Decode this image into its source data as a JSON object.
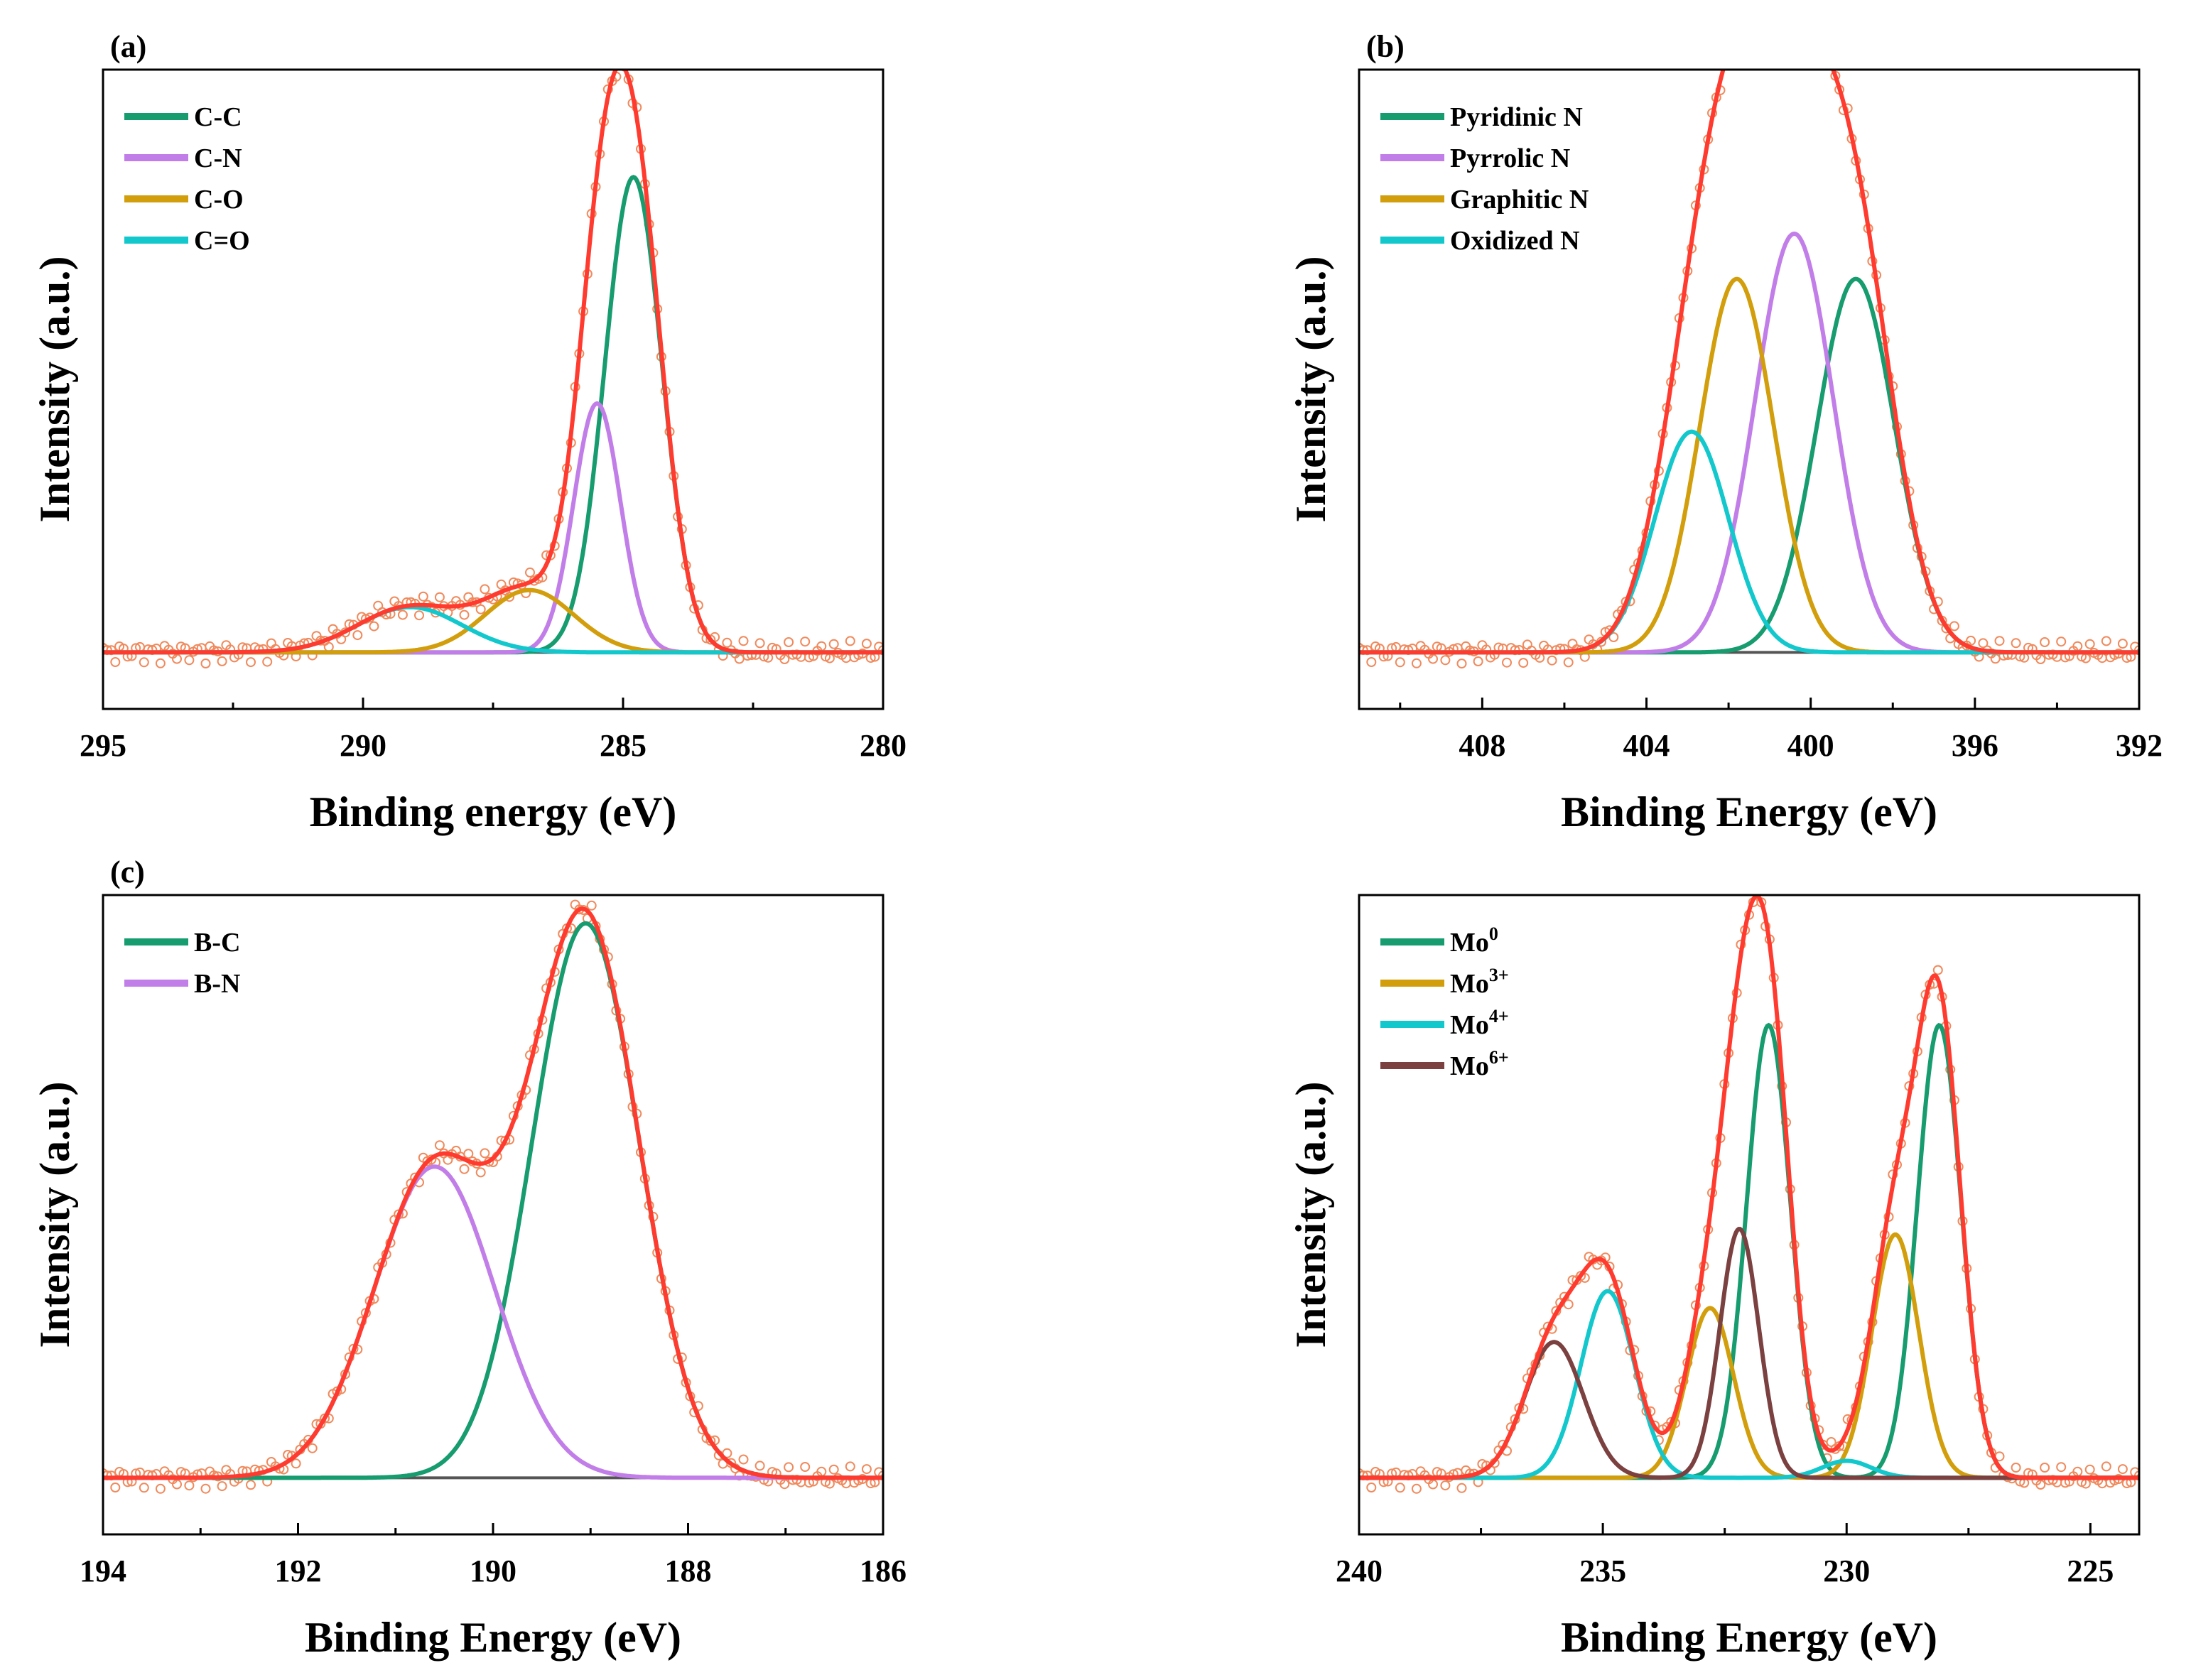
{
  "colors": {
    "data_marker": "#f08a5d",
    "envelope": "#ff3b2f",
    "green": "#169c6e",
    "violet": "#c27ee8",
    "gold": "#d29e0c",
    "cyan": "#13c8cc",
    "brown": "#7b4040",
    "baseline": "#555555"
  },
  "chart_data": [
    {
      "id": "a",
      "type": "line",
      "panel_label": "(a)",
      "xlabel": "Binding energy (eV)",
      "ylabel": "Intensity (a.u.)",
      "xlim": [
        295,
        280
      ],
      "xticks": [
        {
          "v": 295,
          "t": "295"
        },
        {
          "v": 290,
          "t": "290"
        },
        {
          "v": 285,
          "t": "285"
        },
        {
          "v": 280,
          "t": "280"
        }
      ],
      "minor_ticks": [
        292.5,
        287.5,
        282.5
      ],
      "ylim": [
        0,
        1.13
      ],
      "baseline": 0.1,
      "series": [
        {
          "name": "C-C",
          "color": "green",
          "center": 284.8,
          "height": 0.84,
          "width": 0.55
        },
        {
          "name": "C-N",
          "color": "violet",
          "center": 285.5,
          "height": 0.44,
          "width": 0.45
        },
        {
          "name": "C-O",
          "color": "gold",
          "center": 286.8,
          "height": 0.11,
          "width": 0.85
        },
        {
          "name": "C=O",
          "color": "cyan",
          "center": 289.1,
          "height": 0.08,
          "width": 1.0
        }
      ]
    },
    {
      "id": "b",
      "type": "line",
      "panel_label": "(b)",
      "xlabel": "Binding Energy (eV)",
      "ylabel": "Intensity (a.u.)",
      "xlim": [
        411,
        392
      ],
      "xticks": [
        {
          "v": 408,
          "t": "408"
        },
        {
          "v": 404,
          "t": "404"
        },
        {
          "v": 400,
          "t": "400"
        },
        {
          "v": 396,
          "t": "396"
        },
        {
          "v": 392,
          "t": "392"
        }
      ],
      "minor_ticks": [
        410,
        406,
        402,
        398,
        394
      ],
      "ylim": [
        0,
        1.13
      ],
      "baseline": 0.1,
      "series": [
        {
          "name": "Pyridinic N",
          "color": "green",
          "center": 398.9,
          "height": 0.66,
          "width": 0.95
        },
        {
          "name": "Pyrrolic N",
          "color": "violet",
          "center": 400.4,
          "height": 0.74,
          "width": 0.95
        },
        {
          "name": "Graphitic N",
          "color": "gold",
          "center": 401.8,
          "height": 0.66,
          "width": 0.9
        },
        {
          "name": "Oxidized N",
          "color": "cyan",
          "center": 402.9,
          "height": 0.39,
          "width": 0.9
        }
      ]
    },
    {
      "id": "c",
      "type": "line",
      "panel_label": "(c)",
      "xlabel": "Binding Energy (eV)",
      "ylabel": "Intensity (a.u.)",
      "xlim": [
        194,
        186
      ],
      "xticks": [
        {
          "v": 194,
          "t": "194"
        },
        {
          "v": 192,
          "t": "192"
        },
        {
          "v": 190,
          "t": "190"
        },
        {
          "v": 188,
          "t": "188"
        },
        {
          "v": 186,
          "t": "186"
        }
      ],
      "minor_ticks": [
        193,
        191,
        189,
        187
      ],
      "ylim": [
        0,
        1.13
      ],
      "baseline": 0.1,
      "series": [
        {
          "name": "B-C",
          "color": "green",
          "center": 189.05,
          "height": 0.98,
          "width": 0.55
        },
        {
          "name": "B-N",
          "color": "violet",
          "center": 190.6,
          "height": 0.55,
          "width": 0.62
        }
      ]
    },
    {
      "id": "d",
      "type": "line",
      "panel_label": "",
      "xlabel": "Binding Energy (eV)",
      "ylabel": "Intensity (a.u.)",
      "xlim": [
        240,
        224
      ],
      "xticks": [
        {
          "v": 240,
          "t": "240"
        },
        {
          "v": 235,
          "t": "235"
        },
        {
          "v": 230,
          "t": "230"
        },
        {
          "v": 225,
          "t": "225"
        }
      ],
      "minor_ticks": [
        237.5,
        232.5,
        227.5
      ],
      "ylim": [
        0,
        1.13
      ],
      "baseline": 0.1,
      "series": [
        {
          "name": "Mo",
          "sup": "0",
          "color": "green",
          "peaks": [
            {
              "center": 228.1,
              "height": 0.8,
              "width": 0.45
            },
            {
              "center": 231.6,
              "height": 0.8,
              "width": 0.45
            }
          ]
        },
        {
          "name": "Mo",
          "sup": "3+",
          "color": "gold",
          "peaks": [
            {
              "center": 229.0,
              "height": 0.43,
              "width": 0.48
            },
            {
              "center": 232.8,
              "height": 0.3,
              "width": 0.48
            }
          ]
        },
        {
          "name": "Mo",
          "sup": "4+",
          "color": "cyan",
          "peaks": [
            {
              "center": 230.0,
              "height": 0.03,
              "width": 0.5
            },
            {
              "center": 234.9,
              "height": 0.33,
              "width": 0.55
            }
          ]
        },
        {
          "name": "Mo",
          "sup": "6+",
          "color": "brown",
          "peaks": [
            {
              "center": 232.2,
              "height": 0.44,
              "width": 0.4
            },
            {
              "center": 236.0,
              "height": 0.24,
              "width": 0.6
            }
          ]
        }
      ]
    }
  ]
}
